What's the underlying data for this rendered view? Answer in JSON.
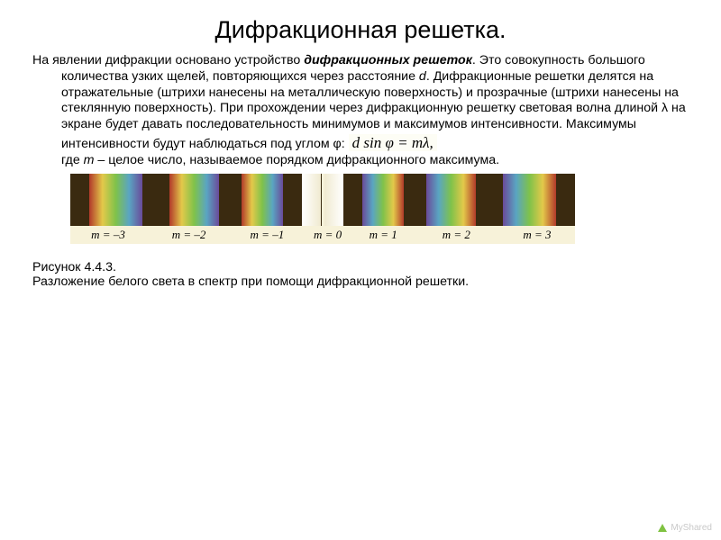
{
  "title": "Дифракционная решетка.",
  "para_pre": "На явлении дифракции основано устройство ",
  "para_bold": "дифракционных решеток",
  "para_mid": ". Это совокупность большого количества узких щелей, повторяющихся через расстояние ",
  "para_d": "d",
  "para_after_d": ". Дифракционные решетки делятся на отражательные (штрихи нанесены на металлическую поверхность) и прозрачные (штрихи нанесены на стеклянную поверхность). При прохождении через дифракционную решетку световая волна длиной λ на экране будет давать последовательность минимумов и максимумов интенсивности. Максимумы интенсивности будут наблюдаться под углом φ: ",
  "formula": "d sin φ = mλ,",
  "para_post1": " где ",
  "para_m": "m",
  "para_post2": " – целое число, называемое порядком дифракционного максимума.",
  "figure": {
    "dark_color": "#3a2a10",
    "label_bg": "#f7f2d9",
    "labels": [
      "m = –3",
      "m = –2",
      "m = –1",
      "m = 0",
      "m = 1",
      "m = 2",
      "m = 3"
    ],
    "label_widths_pct": [
      15,
      17,
      14,
      10,
      12,
      17,
      15
    ],
    "left_bands": [
      {
        "w": 5,
        "bg": "#3a2a10"
      },
      {
        "w": 14,
        "bg": "linear-gradient(90deg,#b23a2a,#e3c94a,#7fc24a,#5aa5c2,#6a4a9a)"
      },
      {
        "w": 7,
        "bg": "#3a2a10"
      },
      {
        "w": 13,
        "bg": "linear-gradient(90deg,#b23a2a,#e3c94a,#7fc24a,#5aa5c2,#6a4a9a)"
      },
      {
        "w": 6,
        "bg": "#3a2a10"
      },
      {
        "w": 11,
        "bg": "linear-gradient(90deg,#b23a2a,#e3c94a,#7fc24a,#5aa5c2,#6a4a9a)"
      },
      {
        "w": 5,
        "bg": "#3a2a10"
      },
      {
        "w": 5,
        "bg": "linear-gradient(90deg,#ffffff,#f0ead0)"
      }
    ],
    "right_bands": [
      {
        "w": 5,
        "bg": "linear-gradient(90deg,#f0ead0,#ffffff)"
      },
      {
        "w": 5,
        "bg": "#3a2a10"
      },
      {
        "w": 11,
        "bg": "linear-gradient(90deg,#6a4a9a,#5aa5c2,#7fc24a,#e3c94a,#b23a2a)"
      },
      {
        "w": 6,
        "bg": "#3a2a10"
      },
      {
        "w": 13,
        "bg": "linear-gradient(90deg,#6a4a9a,#5aa5c2,#7fc24a,#e3c94a,#b23a2a)"
      },
      {
        "w": 7,
        "bg": "#3a2a10"
      },
      {
        "w": 14,
        "bg": "linear-gradient(90deg,#6a4a9a,#5aa5c2,#7fc24a,#e3c94a,#b23a2a)"
      },
      {
        "w": 5,
        "bg": "#3a2a10"
      }
    ]
  },
  "caption_1": "Рисунок 4.4.3.",
  "caption_2": "Разложение белого света в спектр при помощи дифракционной решетки.",
  "watermark": "MyShared"
}
